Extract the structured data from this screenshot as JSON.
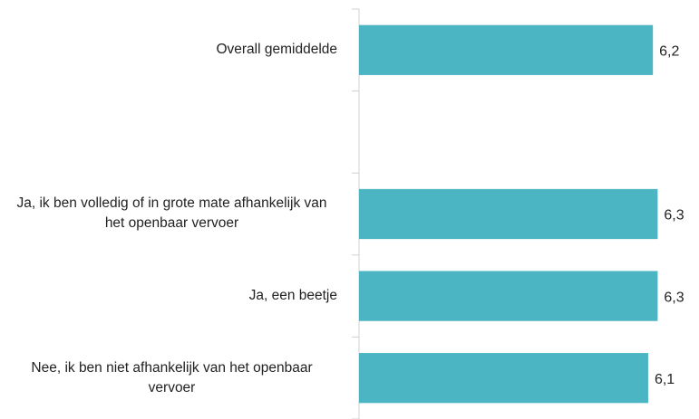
{
  "chart_data": {
    "type": "bar",
    "orientation": "horizontal",
    "categories": [
      "Overall gemiddelde",
      null,
      "Ja, ik ben volledig of in grote mate afhankelijk van het openbaar vervoer",
      "Ja, een beetje",
      "Nee, ik ben niet afhankelijk van het openbaar vervoer"
    ],
    "values": [
      6.2,
      null,
      6.3,
      6.3,
      6.1
    ],
    "value_labels": [
      "6,2",
      null,
      "6,3",
      "6,3",
      "6,1"
    ],
    "color": "#4bb5c4",
    "xlim": [
      0,
      7
    ]
  }
}
